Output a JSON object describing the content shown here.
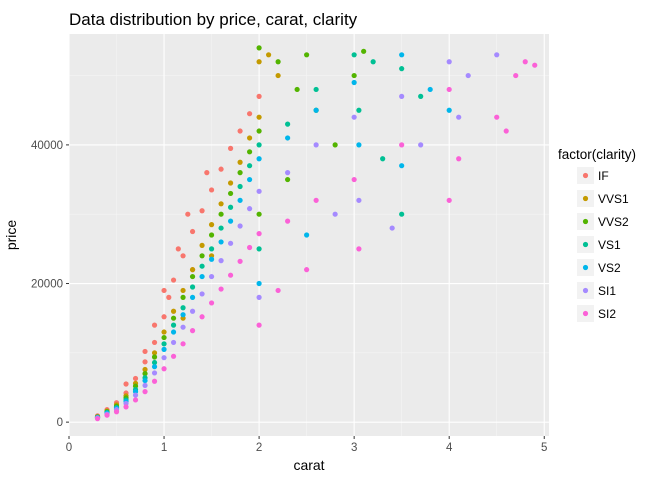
{
  "chart_data": {
    "type": "scatter",
    "title": "Data distribution by price, carat, clarity",
    "xlabel": "carat",
    "ylabel": "price",
    "xlim": [
      0,
      5.05
    ],
    "ylim": [
      -2000,
      56000
    ],
    "x_ticks": [
      0,
      1,
      2,
      3,
      4,
      5
    ],
    "x_tick_labels": [
      "0",
      "1",
      "2",
      "3",
      "4",
      "5"
    ],
    "y_ticks": [
      0,
      20000,
      40000
    ],
    "y_tick_labels": [
      "0",
      "20000",
      "40000"
    ],
    "grid": true,
    "legend": {
      "title": "factor(clarity)",
      "placement": "right"
    },
    "series": [
      {
        "name": "IF",
        "color": "#F8766D",
        "points": [
          [
            0.3,
            900
          ],
          [
            0.4,
            1800
          ],
          [
            0.5,
            2800
          ],
          [
            0.6,
            4200
          ],
          [
            0.7,
            6300
          ],
          [
            0.8,
            8700
          ],
          [
            0.9,
            11500
          ],
          [
            1.0,
            15200
          ],
          [
            1.05,
            18000
          ],
          [
            1.1,
            20500
          ],
          [
            1.2,
            24000
          ],
          [
            1.3,
            27500
          ],
          [
            1.4,
            30500
          ],
          [
            1.5,
            33500
          ],
          [
            1.6,
            36500
          ],
          [
            1.7,
            39500
          ],
          [
            1.8,
            42000
          ],
          [
            1.9,
            44500
          ],
          [
            2.0,
            47000
          ],
          [
            0.9,
            14000
          ],
          [
            1.0,
            19000
          ],
          [
            1.15,
            25000
          ],
          [
            1.25,
            30000
          ],
          [
            0.8,
            10200
          ],
          [
            1.3,
            22000
          ],
          [
            0.6,
            5500
          ],
          [
            1.45,
            36000
          ]
        ]
      },
      {
        "name": "VVS1",
        "color": "#C49A00",
        "points": [
          [
            0.3,
            800
          ],
          [
            0.4,
            1600
          ],
          [
            0.5,
            2500
          ],
          [
            0.6,
            3800
          ],
          [
            0.7,
            5600
          ],
          [
            0.8,
            7600
          ],
          [
            0.9,
            10000
          ],
          [
            1.0,
            13000
          ],
          [
            1.1,
            16000
          ],
          [
            1.2,
            19000
          ],
          [
            1.3,
            22000
          ],
          [
            1.4,
            25500
          ],
          [
            1.5,
            28500
          ],
          [
            1.6,
            31500
          ],
          [
            1.7,
            34500
          ],
          [
            1.8,
            37500
          ],
          [
            1.9,
            41000
          ],
          [
            2.0,
            44000
          ],
          [
            2.0,
            52000
          ],
          [
            2.2,
            50000
          ],
          [
            2.1,
            53000
          ],
          [
            1.5,
            24000
          ],
          [
            1.2,
            15000
          ]
        ]
      },
      {
        "name": "VVS2",
        "color": "#53B400",
        "points": [
          [
            0.3,
            750
          ],
          [
            0.4,
            1500
          ],
          [
            0.5,
            2300
          ],
          [
            0.6,
            3500
          ],
          [
            0.7,
            5200
          ],
          [
            0.8,
            7000
          ],
          [
            0.9,
            9400
          ],
          [
            1.0,
            12200
          ],
          [
            1.1,
            15000
          ],
          [
            1.2,
            18000
          ],
          [
            1.3,
            21000
          ],
          [
            1.4,
            24000
          ],
          [
            1.5,
            27000
          ],
          [
            1.6,
            30000
          ],
          [
            1.7,
            33000
          ],
          [
            1.8,
            36000
          ],
          [
            1.9,
            39000
          ],
          [
            2.0,
            42000
          ],
          [
            2.0,
            54000
          ],
          [
            2.2,
            52000
          ],
          [
            2.5,
            53000
          ],
          [
            2.4,
            48000
          ],
          [
            2.6,
            45000
          ],
          [
            3.0,
            50000
          ],
          [
            3.1,
            53500
          ],
          [
            2.8,
            40000
          ],
          [
            2.0,
            30000
          ],
          [
            2.3,
            35000
          ]
        ]
      },
      {
        "name": "VS1",
        "color": "#00C094",
        "points": [
          [
            0.3,
            700
          ],
          [
            0.4,
            1400
          ],
          [
            0.5,
            2100
          ],
          [
            0.6,
            3200
          ],
          [
            0.7,
            4700
          ],
          [
            0.8,
            6400
          ],
          [
            0.9,
            8600
          ],
          [
            1.0,
            11300
          ],
          [
            1.1,
            14000
          ],
          [
            1.2,
            16500
          ],
          [
            1.3,
            19500
          ],
          [
            1.4,
            22500
          ],
          [
            1.5,
            25000
          ],
          [
            1.6,
            28000
          ],
          [
            1.7,
            31000
          ],
          [
            1.8,
            34000
          ],
          [
            1.9,
            37000
          ],
          [
            2.0,
            40000
          ],
          [
            2.0,
            25000
          ],
          [
            2.3,
            43000
          ],
          [
            2.6,
            48000
          ],
          [
            3.0,
            53000
          ],
          [
            3.05,
            45000
          ],
          [
            3.2,
            52000
          ],
          [
            3.5,
            51000
          ],
          [
            3.7,
            47000
          ],
          [
            3.3,
            38000
          ],
          [
            3.5,
            30000
          ]
        ]
      },
      {
        "name": "VS2",
        "color": "#00B6EB",
        "points": [
          [
            0.3,
            650
          ],
          [
            0.4,
            1300
          ],
          [
            0.5,
            2000
          ],
          [
            0.6,
            3000
          ],
          [
            0.7,
            4400
          ],
          [
            0.8,
            6000
          ],
          [
            0.9,
            8000
          ],
          [
            1.0,
            10500
          ],
          [
            1.1,
            13000
          ],
          [
            1.2,
            15500
          ],
          [
            1.3,
            18000
          ],
          [
            1.4,
            21000
          ],
          [
            1.5,
            23500
          ],
          [
            1.6,
            26000
          ],
          [
            1.7,
            29000
          ],
          [
            1.8,
            32000
          ],
          [
            1.9,
            35000
          ],
          [
            2.0,
            38000
          ],
          [
            2.0,
            20000
          ],
          [
            2.3,
            41000
          ],
          [
            2.6,
            45000
          ],
          [
            3.0,
            49000
          ],
          [
            3.05,
            40000
          ],
          [
            3.5,
            53000
          ],
          [
            3.8,
            48000
          ],
          [
            4.0,
            45000
          ],
          [
            3.5,
            37000
          ],
          [
            2.5,
            27000
          ]
        ]
      },
      {
        "name": "SI1",
        "color": "#A58AFF",
        "points": [
          [
            0.3,
            600
          ],
          [
            0.4,
            1150
          ],
          [
            0.5,
            1800
          ],
          [
            0.6,
            2700
          ],
          [
            0.7,
            3900
          ],
          [
            0.8,
            5300
          ],
          [
            0.9,
            7100
          ],
          [
            1.0,
            9300
          ],
          [
            1.1,
            11500
          ],
          [
            1.2,
            13700
          ],
          [
            1.3,
            16000
          ],
          [
            1.4,
            18500
          ],
          [
            1.5,
            21000
          ],
          [
            1.6,
            23300
          ],
          [
            1.7,
            25800
          ],
          [
            1.8,
            28300
          ],
          [
            1.9,
            30800
          ],
          [
            2.0,
            33300
          ],
          [
            2.0,
            18000
          ],
          [
            2.3,
            36000
          ],
          [
            2.6,
            40000
          ],
          [
            3.0,
            44000
          ],
          [
            3.05,
            32000
          ],
          [
            3.5,
            47000
          ],
          [
            4.0,
            52000
          ],
          [
            4.2,
            50000
          ],
          [
            4.5,
            53000
          ],
          [
            4.1,
            44000
          ],
          [
            3.7,
            40000
          ],
          [
            2.8,
            30000
          ],
          [
            3.4,
            28000
          ]
        ]
      },
      {
        "name": "SI2",
        "color": "#FB61D7",
        "points": [
          [
            0.3,
            500
          ],
          [
            0.4,
            1000
          ],
          [
            0.5,
            1500
          ],
          [
            0.6,
            2200
          ],
          [
            0.7,
            3200
          ],
          [
            0.8,
            4400
          ],
          [
            0.9,
            5900
          ],
          [
            1.0,
            7700
          ],
          [
            1.1,
            9500
          ],
          [
            1.2,
            11300
          ],
          [
            1.3,
            13200
          ],
          [
            1.4,
            15200
          ],
          [
            1.5,
            17200
          ],
          [
            1.6,
            19200
          ],
          [
            1.7,
            21200
          ],
          [
            1.8,
            23200
          ],
          [
            1.9,
            25200
          ],
          [
            2.0,
            27200
          ],
          [
            2.0,
            14000
          ],
          [
            2.3,
            29000
          ],
          [
            2.6,
            32000
          ],
          [
            3.0,
            35000
          ],
          [
            3.05,
            25000
          ],
          [
            3.5,
            40000
          ],
          [
            4.0,
            48000
          ],
          [
            4.0,
            32000
          ],
          [
            4.1,
            38000
          ],
          [
            4.5,
            44000
          ],
          [
            4.6,
            42000
          ],
          [
            4.8,
            52000
          ],
          [
            4.9,
            51500
          ],
          [
            4.7,
            50000
          ],
          [
            2.2,
            19000
          ],
          [
            2.5,
            22000
          ]
        ]
      }
    ]
  }
}
